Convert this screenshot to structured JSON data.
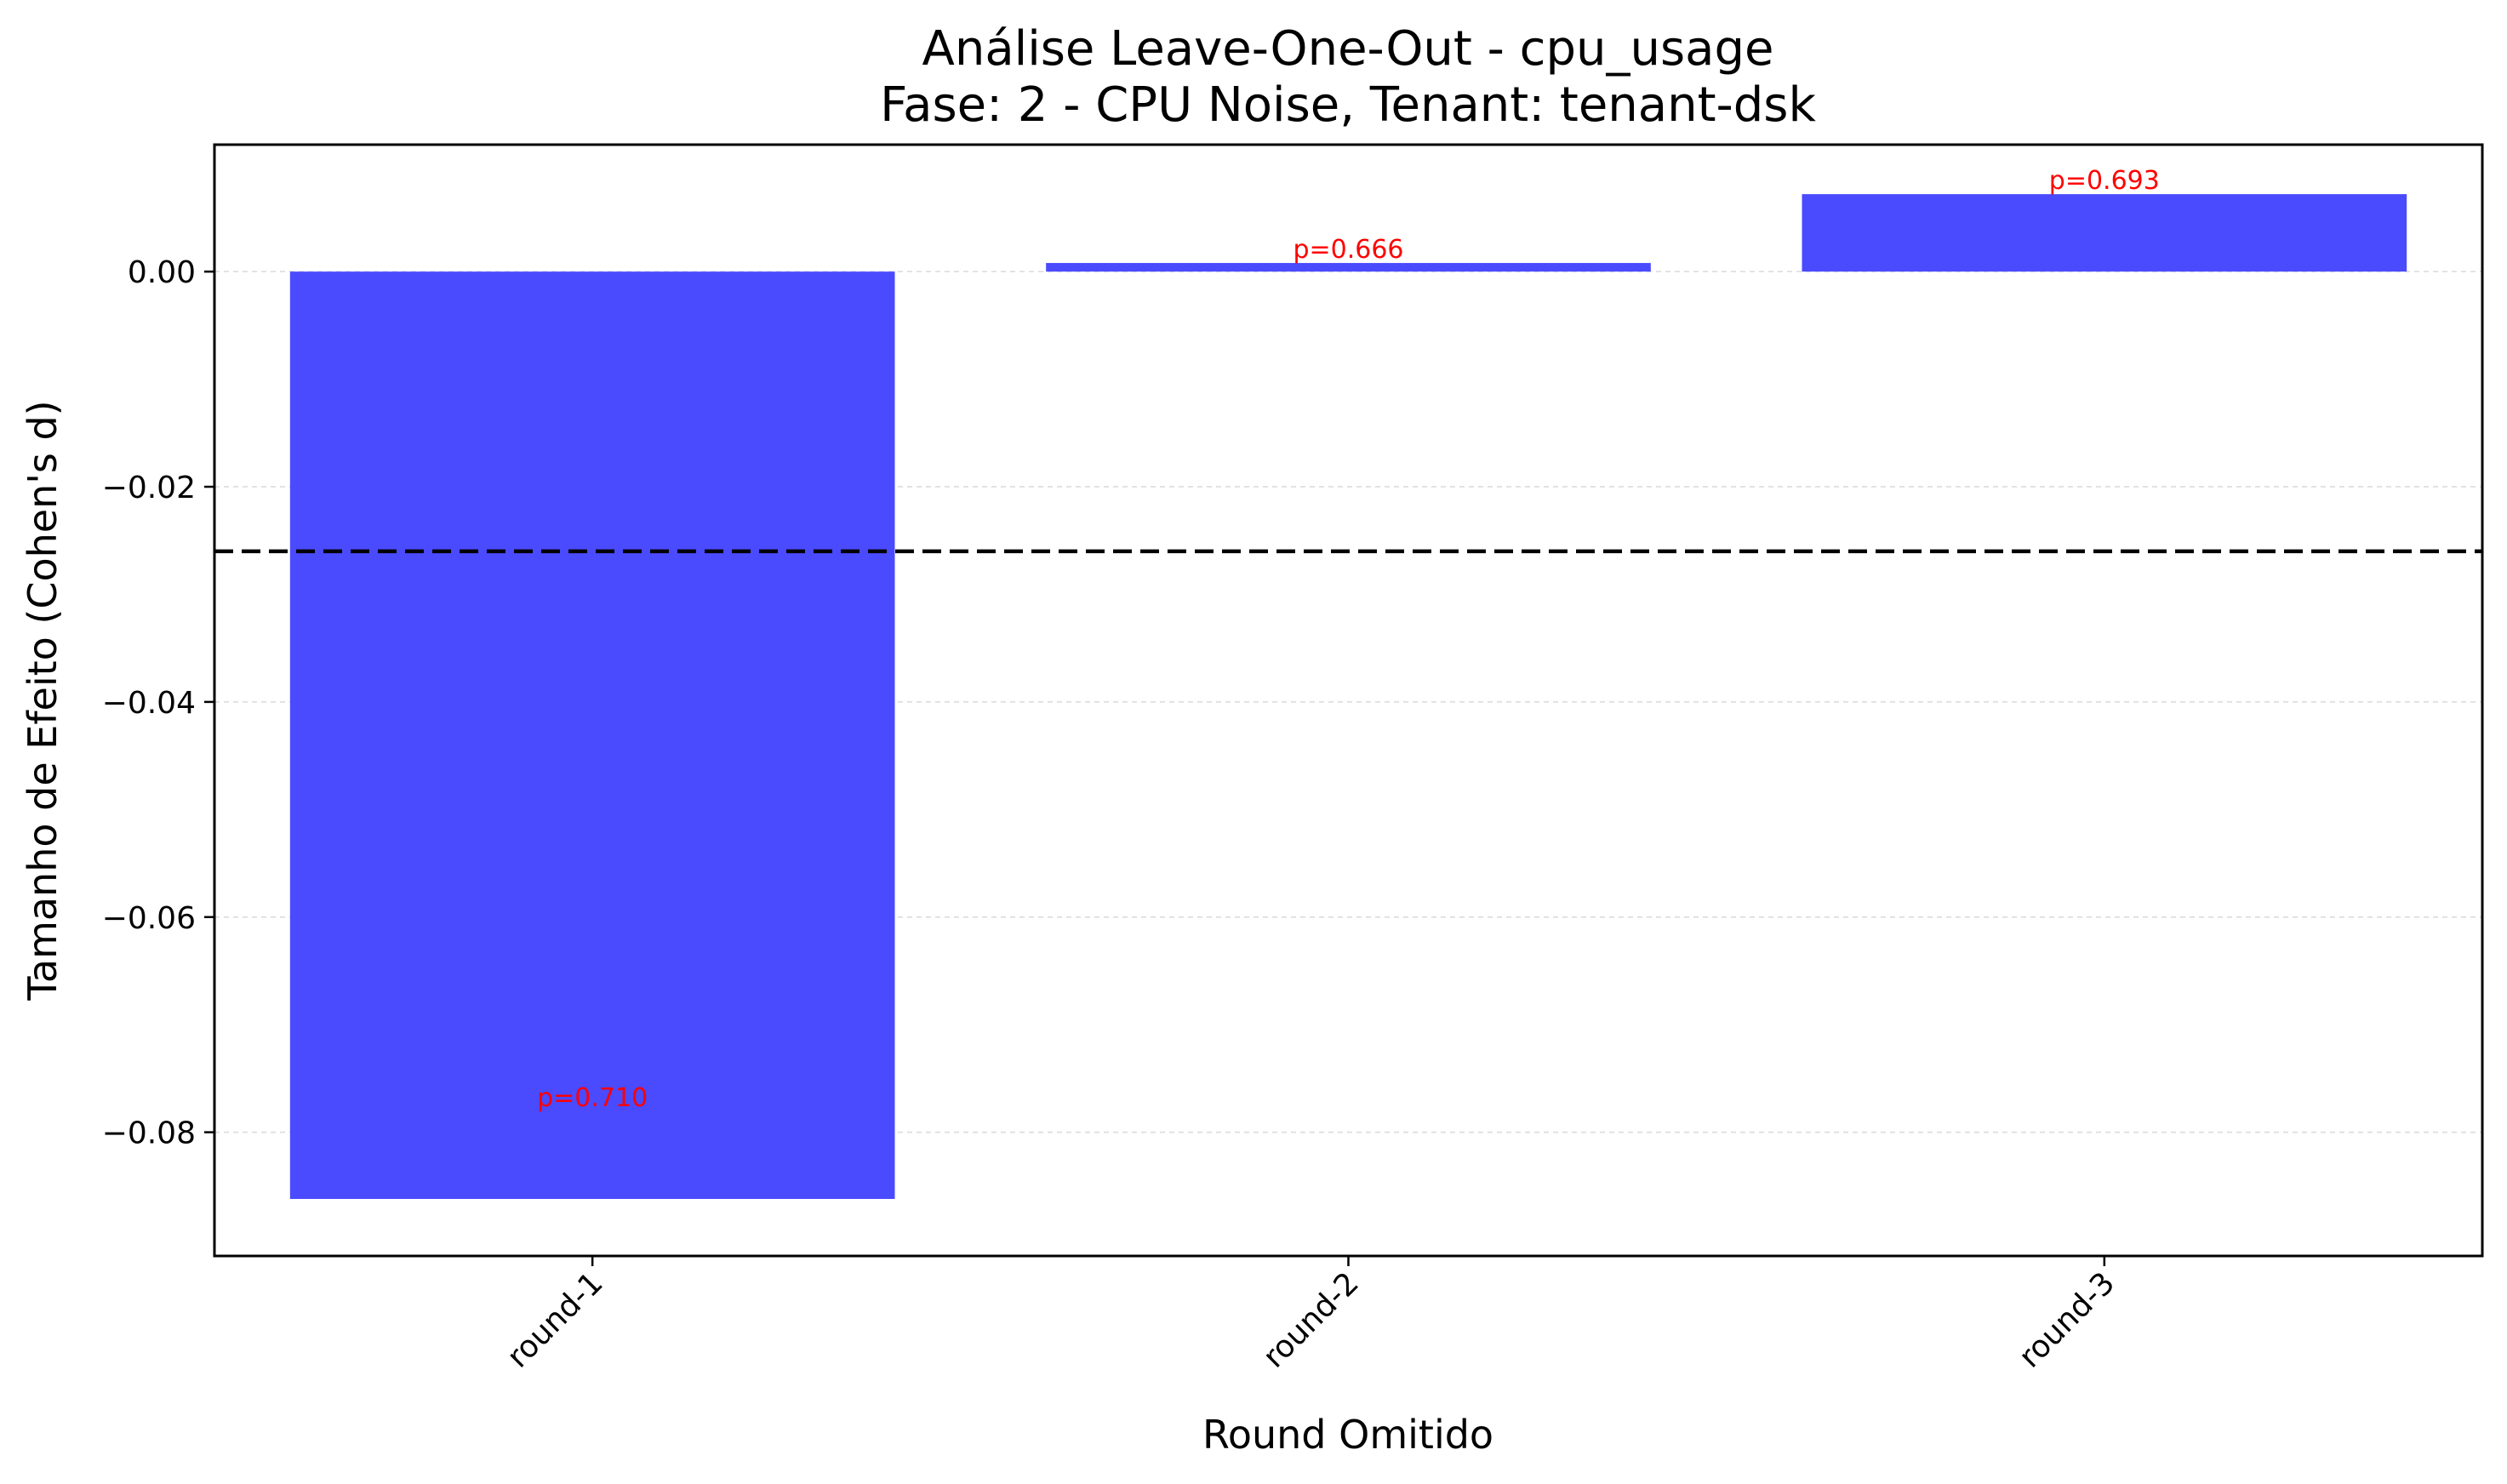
{
  "chart_data": {
    "type": "bar",
    "title_line1": "Análise Leave-One-Out - cpu_usage",
    "title_line2": "Fase: 2 - CPU Noise, Tenant: tenant-dsk",
    "xlabel": "Round Omitido",
    "ylabel": "Tamanho de Efeito (Cohen's d)",
    "categories": [
      "round-1",
      "round-2",
      "round-3"
    ],
    "values": [
      -0.0862,
      0.0008,
      0.0072
    ],
    "p_labels": [
      "p=0.710",
      "p=0.666",
      "p=0.693"
    ],
    "ylim": [
      -0.0915,
      0.0118
    ],
    "yticks": [
      0.0,
      -0.02,
      -0.04,
      -0.06,
      -0.08
    ],
    "ytick_labels": [
      "0.00",
      "−0.02",
      "−0.04",
      "−0.06",
      "−0.08"
    ],
    "reference_line": -0.026,
    "grid": "y-dashed",
    "bar_color": "#4a4aff",
    "p_label_color": "#ff0000",
    "reference_line_color": "#000000"
  }
}
